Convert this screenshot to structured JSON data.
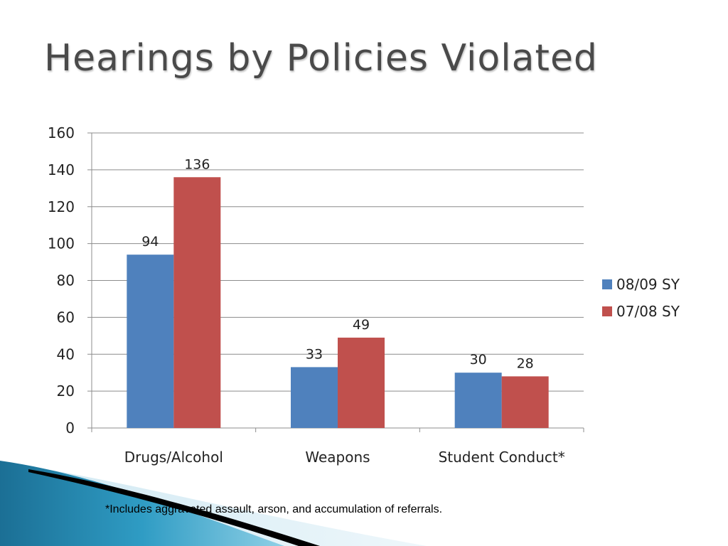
{
  "slide": {
    "title": "Hearings by Policies Violated",
    "footnote": "*Includes aggravated assault, arson, and accumulation of referrals."
  },
  "chart_data": {
    "type": "bar",
    "categories": [
      "Drugs/Alcohol",
      "Weapons",
      "Student Conduct*"
    ],
    "series": [
      {
        "name": "08/09 SY",
        "values": [
          94,
          33,
          30
        ],
        "color": "#4F81BD"
      },
      {
        "name": "07/08 SY",
        "values": [
          136,
          49,
          28
        ],
        "color": "#C0504D"
      }
    ],
    "ylim": [
      0,
      160
    ],
    "yticks": [
      0,
      20,
      40,
      60,
      80,
      100,
      120,
      140,
      160
    ],
    "grid": true,
    "legend": "right",
    "xlabel": "",
    "ylabel": ""
  }
}
